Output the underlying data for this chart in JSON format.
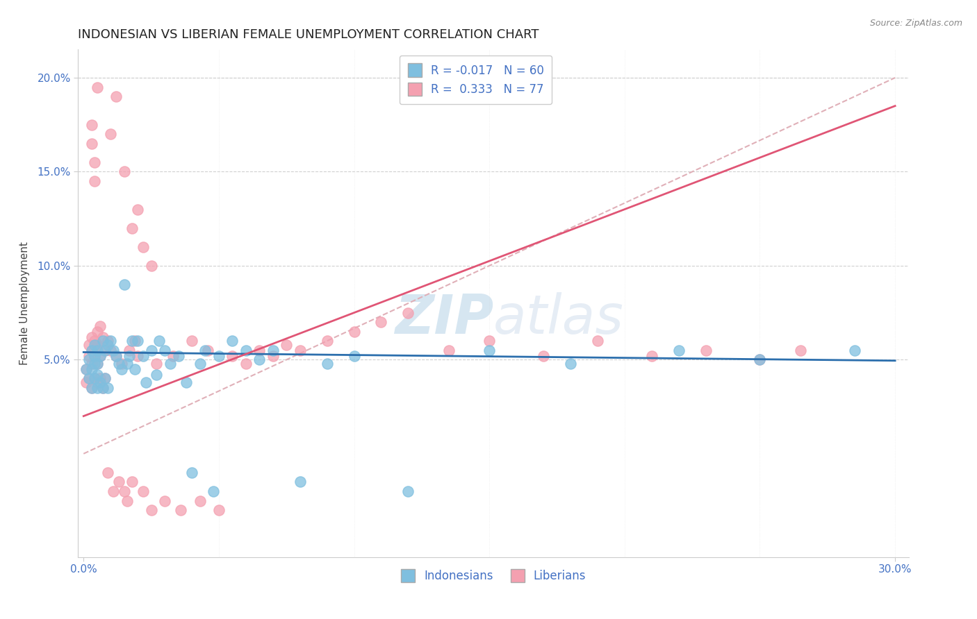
{
  "title": "INDONESIAN VS LIBERIAN FEMALE UNEMPLOYMENT CORRELATION CHART",
  "source_text": "Source: ZipAtlas.com",
  "ylabel": "Female Unemployment",
  "xlim": [
    -0.002,
    0.305
  ],
  "ylim": [
    -0.055,
    0.215
  ],
  "xticks": [
    0.0,
    0.3
  ],
  "xticklabels": [
    "0.0%",
    "30.0%"
  ],
  "yticks": [
    0.05,
    0.1,
    0.15,
    0.2
  ],
  "yticklabels": [
    "5.0%",
    "10.0%",
    "15.0%",
    "20.0%"
  ],
  "title_fontsize": 13,
  "axis_label_fontsize": 11,
  "tick_fontsize": 11,
  "legend_R_indonesian": "-0.017",
  "legend_N_indonesian": "60",
  "legend_R_liberian": "0.333",
  "legend_N_liberian": "77",
  "color_indonesian": "#7fbfdf",
  "color_liberian": "#f4a0b0",
  "trend_line_indonesian_color": "#2c6fad",
  "trend_line_liberian_color": "#e05575",
  "ref_line_color": "#e0b0b8",
  "grid_color": "#d0d0d0",
  "title_color": "#222222",
  "source_color": "#888888",
  "axis_color": "#4472c4",
  "watermark_zip": "ZIP",
  "watermark_atlas": "atlas",
  "indonesian_x": [
    0.001,
    0.002,
    0.002,
    0.003,
    0.003,
    0.003,
    0.004,
    0.004,
    0.004,
    0.004,
    0.005,
    0.005,
    0.005,
    0.005,
    0.006,
    0.006,
    0.007,
    0.007,
    0.008,
    0.008,
    0.009,
    0.009,
    0.01,
    0.011,
    0.012,
    0.013,
    0.014,
    0.015,
    0.016,
    0.017,
    0.018,
    0.019,
    0.02,
    0.022,
    0.023,
    0.025,
    0.027,
    0.028,
    0.03,
    0.032,
    0.035,
    0.038,
    0.04,
    0.043,
    0.045,
    0.048,
    0.05,
    0.055,
    0.06,
    0.065,
    0.07,
    0.08,
    0.09,
    0.1,
    0.12,
    0.15,
    0.18,
    0.22,
    0.25,
    0.285
  ],
  "indonesian_y": [
    0.045,
    0.04,
    0.05,
    0.035,
    0.045,
    0.055,
    0.04,
    0.048,
    0.052,
    0.058,
    0.035,
    0.042,
    0.048,
    0.055,
    0.038,
    0.052,
    0.035,
    0.06,
    0.04,
    0.055,
    0.035,
    0.058,
    0.06,
    0.055,
    0.052,
    0.048,
    0.045,
    0.09,
    0.048,
    0.052,
    0.06,
    0.045,
    0.06,
    0.052,
    0.038,
    0.055,
    0.042,
    0.06,
    0.055,
    0.048,
    0.052,
    0.038,
    -0.01,
    0.048,
    0.055,
    -0.02,
    0.052,
    0.06,
    0.055,
    0.05,
    0.055,
    -0.015,
    0.048,
    0.052,
    -0.02,
    0.055,
    0.048,
    0.055,
    0.05,
    0.055
  ],
  "liberian_x": [
    0.001,
    0.001,
    0.002,
    0.002,
    0.002,
    0.003,
    0.003,
    0.003,
    0.003,
    0.004,
    0.004,
    0.004,
    0.005,
    0.005,
    0.005,
    0.005,
    0.006,
    0.006,
    0.006,
    0.007,
    0.007,
    0.008,
    0.008,
    0.009,
    0.009,
    0.01,
    0.011,
    0.012,
    0.013,
    0.014,
    0.015,
    0.016,
    0.017,
    0.018,
    0.019,
    0.02,
    0.022,
    0.025,
    0.027,
    0.03,
    0.033,
    0.036,
    0.04,
    0.043,
    0.046,
    0.05,
    0.055,
    0.06,
    0.065,
    0.07,
    0.075,
    0.08,
    0.09,
    0.1,
    0.11,
    0.12,
    0.135,
    0.15,
    0.17,
    0.19,
    0.21,
    0.23,
    0.25,
    0.265,
    0.01,
    0.012,
    0.015,
    0.018,
    0.02,
    0.022,
    0.025,
    0.005,
    0.003,
    0.003,
    0.004,
    0.004,
    0.005
  ],
  "liberian_y": [
    0.045,
    0.038,
    0.052,
    0.04,
    0.058,
    0.035,
    0.048,
    0.055,
    0.062,
    0.04,
    0.052,
    0.06,
    0.038,
    0.048,
    0.058,
    0.065,
    0.04,
    0.052,
    0.068,
    0.035,
    0.062,
    0.04,
    0.055,
    -0.01,
    0.06,
    0.055,
    -0.02,
    0.052,
    -0.015,
    0.048,
    -0.02,
    -0.025,
    0.055,
    -0.015,
    0.06,
    0.052,
    -0.02,
    -0.03,
    0.048,
    -0.025,
    0.052,
    -0.03,
    0.06,
    -0.025,
    0.055,
    -0.03,
    0.052,
    0.048,
    0.055,
    0.052,
    0.058,
    0.055,
    0.06,
    0.065,
    0.07,
    0.075,
    0.055,
    0.06,
    0.052,
    0.06,
    0.052,
    0.055,
    0.05,
    0.055,
    0.17,
    0.19,
    0.15,
    0.12,
    0.13,
    0.11,
    0.1,
    0.058,
    0.175,
    0.165,
    0.155,
    0.145,
    0.195
  ]
}
